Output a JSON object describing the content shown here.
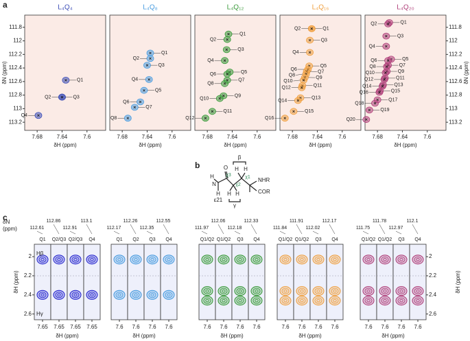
{
  "panel_labels": [
    "a",
    "b",
    "c"
  ],
  "diagram": {
    "labels": [
      "β",
      "H",
      "H",
      "χ3",
      "χ2",
      "χ1",
      "NHR",
      "O",
      "N",
      "H",
      "H",
      "ε21",
      "H",
      "H",
      "COR",
      "γ"
    ]
  },
  "chart_data": [
    {
      "type": "scatter",
      "title": "L₄Q₄",
      "color": "#3d4fb8",
      "xlabel": "δH (ppm)",
      "ylabel": "δN (ppm)",
      "y_axis": "left",
      "xlim": [
        7.7,
        7.57
      ],
      "xticks": [
        7.68,
        7.64,
        7.6
      ],
      "ylim": [
        111.62,
        113.32
      ],
      "yticks": [
        111.8,
        112.0,
        112.2,
        112.4,
        112.6,
        112.8,
        113.0,
        113.2
      ],
      "labels": [
        "Q1",
        "Q2",
        "Q3",
        "Q4"
      ],
      "x": [
        7.634,
        7.64,
        7.64,
        7.678
      ],
      "y": [
        112.58,
        112.83,
        112.83,
        113.1
      ]
    },
    {
      "type": "scatter",
      "title": "L₄Q₈",
      "color": "#4a9de0",
      "xlabel": "δH (ppm)",
      "xlim": [
        7.7,
        7.57
      ],
      "xticks": [
        7.68,
        7.64,
        7.6
      ],
      "ylim": [
        111.62,
        113.32
      ],
      "labels": [
        "Q1",
        "Q2",
        "Q3",
        "Q4",
        "Q5",
        "Q6",
        "Q7",
        "Q8"
      ],
      "x": [
        7.635,
        7.635,
        7.64,
        7.637,
        7.645,
        7.651,
        7.66,
        7.671
      ],
      "y": [
        112.18,
        112.26,
        112.36,
        112.57,
        112.73,
        112.9,
        112.98,
        113.14
      ]
    },
    {
      "type": "scatter",
      "title": "L₄Q₁₂",
      "color": "#3a9a3a",
      "xlabel": "δH (ppm)",
      "xlim": [
        7.7,
        7.57
      ],
      "xticks": [
        7.68,
        7.64,
        7.6
      ],
      "ylim": [
        111.62,
        113.32
      ],
      "labels": [
        "Q1",
        "Q2",
        "Q3",
        "Q4",
        "Q5",
        "Q6",
        "Q7",
        "Q8",
        "Q9",
        "Q10",
        "Q11",
        "Q12"
      ],
      "x": [
        7.646,
        7.648,
        7.649,
        7.652,
        7.644,
        7.648,
        7.648,
        7.652,
        7.654,
        7.66,
        7.672,
        7.683
      ],
      "y": [
        111.9,
        111.98,
        112.13,
        112.29,
        112.46,
        112.49,
        112.58,
        112.63,
        112.81,
        112.85,
        113.04,
        113.14
      ]
    },
    {
      "type": "scatter",
      "title": "L₄Q₁₆",
      "color": "#f0a040",
      "xlabel": "δH (ppm)",
      "xlim": [
        7.7,
        7.57
      ],
      "xticks": [
        7.68,
        7.64,
        7.6
      ],
      "ylim": [
        111.62,
        113.32
      ],
      "labels": [
        "Q1",
        "Q2",
        "Q3",
        "Q4",
        "Q5",
        "Q6",
        "Q7",
        "Q8",
        "Q9",
        "Q10",
        "Q11",
        "Q12",
        "Q13",
        "Q14",
        "Q15",
        "Q16"
      ],
      "x": [
        7.649,
        7.649,
        7.652,
        7.652,
        7.653,
        7.655,
        7.657,
        7.658,
        7.66,
        7.662,
        7.664,
        7.665,
        7.667,
        7.671,
        7.678,
        7.692
      ],
      "y": [
        111.82,
        111.82,
        111.99,
        112.17,
        112.37,
        112.42,
        112.45,
        112.49,
        112.54,
        112.58,
        112.66,
        112.69,
        112.84,
        112.88,
        113.04,
        113.14
      ]
    },
    {
      "type": "scatter",
      "title": "L₄Q₂₀",
      "color": "#b0407a",
      "xlabel": "δH (ppm)",
      "ylabel": "δN (ppm)",
      "y_axis": "right",
      "xlim": [
        7.7,
        7.57
      ],
      "xticks": [
        7.68,
        7.64,
        7.6
      ],
      "ylim": [
        111.62,
        113.32
      ],
      "yticks": [
        111.8,
        112.0,
        112.2,
        112.4,
        112.6,
        112.8,
        113.0,
        113.2
      ],
      "labels": [
        "Q1",
        "Q2",
        "Q3",
        "Q4",
        "Q5",
        "Q6",
        "Q7",
        "Q8",
        "Q9",
        "Q10",
        "Q11",
        "Q12",
        "Q13",
        "Q14",
        "Q15",
        "Q16",
        "Q17",
        "Q18",
        "Q19",
        "Q20"
      ],
      "x": [
        7.661,
        7.663,
        7.666,
        7.666,
        7.658,
        7.663,
        7.663,
        7.665,
        7.665,
        7.667,
        7.668,
        7.669,
        7.671,
        7.672,
        7.676,
        7.677,
        7.68,
        7.684,
        7.693,
        7.698
      ],
      "y": [
        111.73,
        111.75,
        111.93,
        112.08,
        112.27,
        112.29,
        112.36,
        112.38,
        112.45,
        112.47,
        112.55,
        112.57,
        112.65,
        112.67,
        112.74,
        112.76,
        112.87,
        112.92,
        113.02,
        113.16
      ]
    },
    {
      "type": "strip",
      "color": "#2a2ad0",
      "header": [
        "δN",
        "(ppm)"
      ],
      "annotations": [
        "Hβ",
        "Hγ"
      ],
      "xlabel": "δH (ppm)",
      "ylabel": "δH (ppm)",
      "y_axis": "left",
      "ylim": [
        1.87,
        2.66
      ],
      "yticks": [
        2.0,
        2.2,
        2.4,
        2.6
      ],
      "xtick": 7.65,
      "strips": [
        {
          "label": "Q1",
          "dN": 112.61,
          "peaks": [
            2.03,
            2.4
          ]
        },
        {
          "label": "Q2/Q3",
          "dN": 112.86,
          "peaks": [
            2.03,
            2.4
          ]
        },
        {
          "label": "Q2/Q3",
          "dN": 112.91,
          "peaks": [
            2.03,
            2.4
          ]
        },
        {
          "label": "Q4",
          "dN": 113.1,
          "peaks": [
            2.03,
            2.4
          ]
        }
      ]
    },
    {
      "type": "strip",
      "color": "#4a9de0",
      "xlabel": "δH (ppm)",
      "ylim": [
        1.87,
        2.66
      ],
      "xtick": 7.6,
      "strips": [
        {
          "label": "Q1",
          "dN": 112.17,
          "peaks": [
            2.03,
            2.4
          ]
        },
        {
          "label": "Q2",
          "dN": 112.26,
          "peaks": [
            2.03,
            2.4
          ]
        },
        {
          "label": "Q3",
          "dN": 112.35,
          "peaks": [
            2.03,
            2.4
          ]
        },
        {
          "label": "Q4",
          "dN": 112.55,
          "peaks": [
            2.03,
            2.4
          ]
        }
      ]
    },
    {
      "type": "strip",
      "color": "#3a9a3a",
      "xlabel": "δH (ppm)",
      "ylim": [
        1.87,
        2.66
      ],
      "xtick": 7.6,
      "strips": [
        {
          "label": "Q1/Q2",
          "dN": 111.97,
          "peaks": [
            2.03,
            2.36,
            2.46
          ]
        },
        {
          "label": "Q1/Q2",
          "dN": 112.06,
          "peaks": [
            2.03,
            2.36,
            2.46
          ]
        },
        {
          "label": "Q3",
          "dN": 112.18,
          "peaks": [
            2.03,
            2.36,
            2.46
          ]
        },
        {
          "label": "Q4",
          "dN": 112.33,
          "peaks": [
            2.03,
            2.36,
            2.46
          ]
        }
      ]
    },
    {
      "type": "strip",
      "color": "#f0a040",
      "xlabel": "δH (ppm)",
      "ylim": [
        1.87,
        2.66
      ],
      "xtick": 7.6,
      "strips": [
        {
          "label": "Q1/Q2",
          "dN": 111.84,
          "peaks": [
            2.03,
            2.36,
            2.46
          ]
        },
        {
          "label": "Q1/Q2",
          "dN": 111.91,
          "peaks": [
            2.03,
            2.36,
            2.46
          ]
        },
        {
          "label": "Q3",
          "dN": 112.02,
          "peaks": [
            2.03,
            2.36,
            2.46
          ]
        },
        {
          "label": "Q4",
          "dN": 112.17,
          "peaks": [
            2.03,
            2.36,
            2.46
          ]
        }
      ]
    },
    {
      "type": "strip",
      "color": "#b0407a",
      "xlabel": "δH (ppm)",
      "ylabel": "δH (ppm)",
      "y_axis": "right",
      "ylim": [
        1.87,
        2.66
      ],
      "yticks": [
        2.0,
        2.2,
        2.4,
        2.6
      ],
      "xtick": 7.6,
      "strips": [
        {
          "label": "Q1/Q2",
          "dN": 111.75,
          "peaks": [
            2.03,
            2.36,
            2.46
          ]
        },
        {
          "label": "Q1/Q2",
          "dN": 111.78,
          "peaks": [
            2.03,
            2.36,
            2.46
          ]
        },
        {
          "label": "Q3",
          "dN": 112.97,
          "peaks": [
            2.03,
            2.36,
            2.46
          ]
        },
        {
          "label": "Q4",
          "dN": 112.1,
          "peaks": [
            2.03,
            2.36,
            2.46
          ]
        }
      ]
    }
  ]
}
